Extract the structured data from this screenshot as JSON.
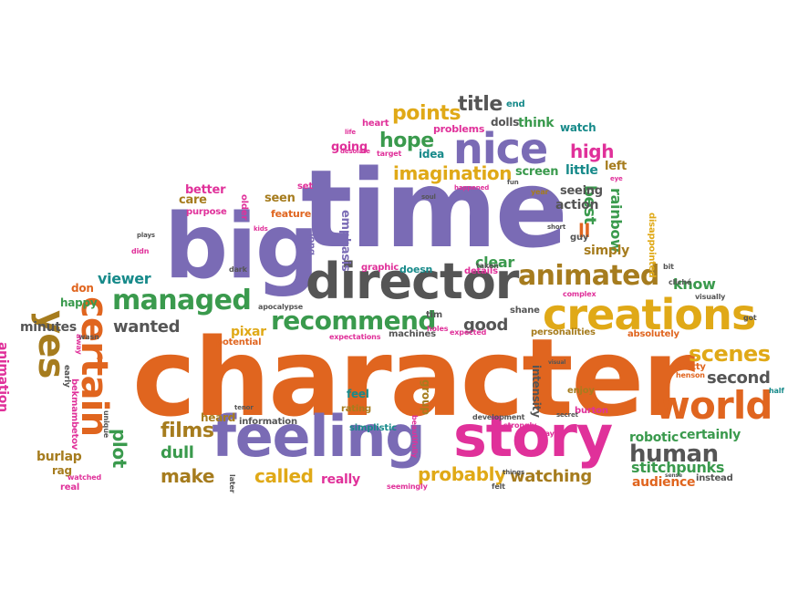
{
  "colors": {
    "orange": "#e0651f",
    "purple": "#7a6bb5",
    "pink": "#e0319a",
    "gold": "#e0a917",
    "green": "#3a9a4d",
    "teal": "#178a8a",
    "gray": "#555555",
    "brown": "#a67c1e"
  },
  "words": [
    {
      "text": "character",
      "color": "orange"
    },
    {
      "text": "time",
      "color": "purple"
    },
    {
      "text": "big",
      "color": "purple"
    },
    {
      "text": "feeling",
      "color": "purple"
    },
    {
      "text": "story",
      "color": "pink"
    },
    {
      "text": "director",
      "color": "gray"
    },
    {
      "text": "creations",
      "color": "gold"
    },
    {
      "text": "nice",
      "color": "purple"
    },
    {
      "text": "world",
      "color": "orange"
    },
    {
      "text": "certain",
      "color": "orange"
    },
    {
      "text": "yes",
      "color": "brown"
    },
    {
      "text": "managed",
      "color": "green"
    },
    {
      "text": "animated",
      "color": "brown"
    },
    {
      "text": "recommend",
      "color": "green"
    },
    {
      "text": "human",
      "color": "gray"
    },
    {
      "text": "scenes",
      "color": "gold"
    },
    {
      "text": "imagination",
      "color": "gold"
    },
    {
      "text": "hope",
      "color": "green"
    },
    {
      "text": "points",
      "color": "gold"
    },
    {
      "text": "title",
      "color": "gray"
    },
    {
      "text": "high",
      "color": "pink"
    },
    {
      "text": "films",
      "color": "brown"
    },
    {
      "text": "called",
      "color": "gold"
    },
    {
      "text": "probably",
      "color": "gold"
    },
    {
      "text": "watching",
      "color": "brown"
    },
    {
      "text": "make",
      "color": "brown"
    },
    {
      "text": "dull",
      "color": "green"
    },
    {
      "text": "plot",
      "color": "green"
    },
    {
      "text": "good",
      "color": "gray"
    },
    {
      "text": "wanted",
      "color": "gray"
    },
    {
      "text": "viewer",
      "color": "teal"
    },
    {
      "text": "second",
      "color": "gray"
    },
    {
      "text": "robotic",
      "color": "green"
    },
    {
      "text": "certainly",
      "color": "green"
    },
    {
      "text": "stitchpunks",
      "color": "green"
    },
    {
      "text": "audience",
      "color": "orange"
    },
    {
      "text": "know",
      "color": "green"
    },
    {
      "text": "best",
      "color": "green"
    },
    {
      "text": "rainbow",
      "color": "green"
    },
    {
      "text": "ll",
      "color": "orange"
    },
    {
      "text": "clear",
      "color": "green"
    },
    {
      "text": "simply",
      "color": "brown"
    },
    {
      "text": "action",
      "color": "gray"
    },
    {
      "text": "seeing",
      "color": "gray"
    },
    {
      "text": "little",
      "color": "teal"
    },
    {
      "text": "left",
      "color": "brown"
    },
    {
      "text": "screen",
      "color": "green"
    },
    {
      "text": "think",
      "color": "green"
    },
    {
      "text": "watch",
      "color": "teal"
    },
    {
      "text": "dolls",
      "color": "gray"
    },
    {
      "text": "going",
      "color": "pink"
    },
    {
      "text": "problems",
      "color": "pink"
    },
    {
      "text": "idea",
      "color": "teal"
    },
    {
      "text": "heart",
      "color": "pink"
    },
    {
      "text": "end",
      "color": "teal"
    },
    {
      "text": "care",
      "color": "brown"
    },
    {
      "text": "better",
      "color": "pink"
    },
    {
      "text": "seen",
      "color": "brown"
    },
    {
      "text": "feature",
      "color": "orange"
    },
    {
      "text": "set",
      "color": "pink"
    },
    {
      "text": "purpose",
      "color": "pink"
    },
    {
      "text": "emphasis",
      "color": "purple"
    },
    {
      "text": "graphic",
      "color": "pink"
    },
    {
      "text": "doesn",
      "color": "teal"
    },
    {
      "text": "details",
      "color": "pink"
    },
    {
      "text": "pixar",
      "color": "gold"
    },
    {
      "text": "potential",
      "color": "orange"
    },
    {
      "text": "happy",
      "color": "green"
    },
    {
      "text": "don",
      "color": "orange"
    },
    {
      "text": "minutes",
      "color": "gray"
    },
    {
      "text": "animation",
      "color": "pink"
    },
    {
      "text": "burlap",
      "color": "brown"
    },
    {
      "text": "rag",
      "color": "brown"
    },
    {
      "text": "real",
      "color": "pink"
    },
    {
      "text": "heard",
      "color": "brown"
    },
    {
      "text": "information",
      "color": "gray"
    },
    {
      "text": "feel",
      "color": "teal"
    },
    {
      "text": "rating",
      "color": "brown"
    },
    {
      "text": "simplistic",
      "color": "teal"
    },
    {
      "text": "really",
      "color": "pink"
    },
    {
      "text": "intensity",
      "color": "gray"
    },
    {
      "text": "group",
      "color": "brown"
    },
    {
      "text": "enjoy",
      "color": "brown"
    },
    {
      "text": "burton",
      "color": "pink"
    },
    {
      "text": "absolutely",
      "color": "orange"
    },
    {
      "text": "personalities",
      "color": "brown"
    },
    {
      "text": "shane",
      "color": "gray"
    },
    {
      "text": "tim",
      "color": "gray"
    },
    {
      "text": "machines",
      "color": "gray"
    },
    {
      "text": "expectations",
      "color": "pink"
    },
    {
      "text": "pretty",
      "color": "orange"
    },
    {
      "text": "bekmambetov",
      "color": "pink"
    },
    {
      "text": "guy",
      "color": "gray"
    },
    {
      "text": "disappointed",
      "color": "gold"
    },
    {
      "text": "year",
      "color": "brown"
    },
    {
      "text": "instead",
      "color": "gray"
    },
    {
      "text": "say",
      "color": "pink"
    },
    {
      "text": "felt",
      "color": "gray"
    },
    {
      "text": "seemingly",
      "color": "pink"
    },
    {
      "text": "beautifully",
      "color": "pink"
    },
    {
      "text": "later",
      "color": "gray"
    },
    {
      "text": "watched",
      "color": "pink"
    },
    {
      "text": "older",
      "color": "pink"
    },
    {
      "text": "long",
      "color": "purple"
    },
    {
      "text": "dark",
      "color": "gray"
    },
    {
      "text": "apocalypse",
      "color": "gray"
    },
    {
      "text": "strongly",
      "color": "pink"
    },
    {
      "text": "development",
      "color": "gray"
    },
    {
      "text": "half",
      "color": "teal"
    },
    {
      "text": "got",
      "color": "gray"
    },
    {
      "text": "visually",
      "color": "gray"
    },
    {
      "text": "complex",
      "color": "pink"
    },
    {
      "text": "cliché",
      "color": "gray"
    },
    {
      "text": "bit",
      "color": "gray"
    },
    {
      "text": "henson",
      "color": "orange"
    },
    {
      "text": "taken",
      "color": "gray"
    },
    {
      "text": "expected",
      "color": "pink"
    },
    {
      "text": "holes",
      "color": "pink"
    },
    {
      "text": "short",
      "color": "gray"
    },
    {
      "text": "plays",
      "color": "gray"
    },
    {
      "text": "didn",
      "color": "pink"
    },
    {
      "text": "early",
      "color": "gray"
    },
    {
      "text": "wasn",
      "color": "gray"
    },
    {
      "text": "away",
      "color": "pink"
    },
    {
      "text": "unique",
      "color": "gray"
    },
    {
      "text": "tenor",
      "color": "gray"
    },
    {
      "text": "secret",
      "color": "gray"
    },
    {
      "text": "desolate",
      "color": "pink"
    },
    {
      "text": "target",
      "color": "pink"
    },
    {
      "text": "kids",
      "color": "pink"
    },
    {
      "text": "soul",
      "color": "gray"
    },
    {
      "text": "fun",
      "color": "gray"
    },
    {
      "text": "happened",
      "color": "pink"
    },
    {
      "text": "eye",
      "color": "pink"
    },
    {
      "text": "life",
      "color": "pink"
    },
    {
      "text": "things",
      "color": "gray"
    },
    {
      "text": "visual",
      "color": "gray"
    },
    {
      "text": "sense",
      "color": "gray"
    }
  ]
}
